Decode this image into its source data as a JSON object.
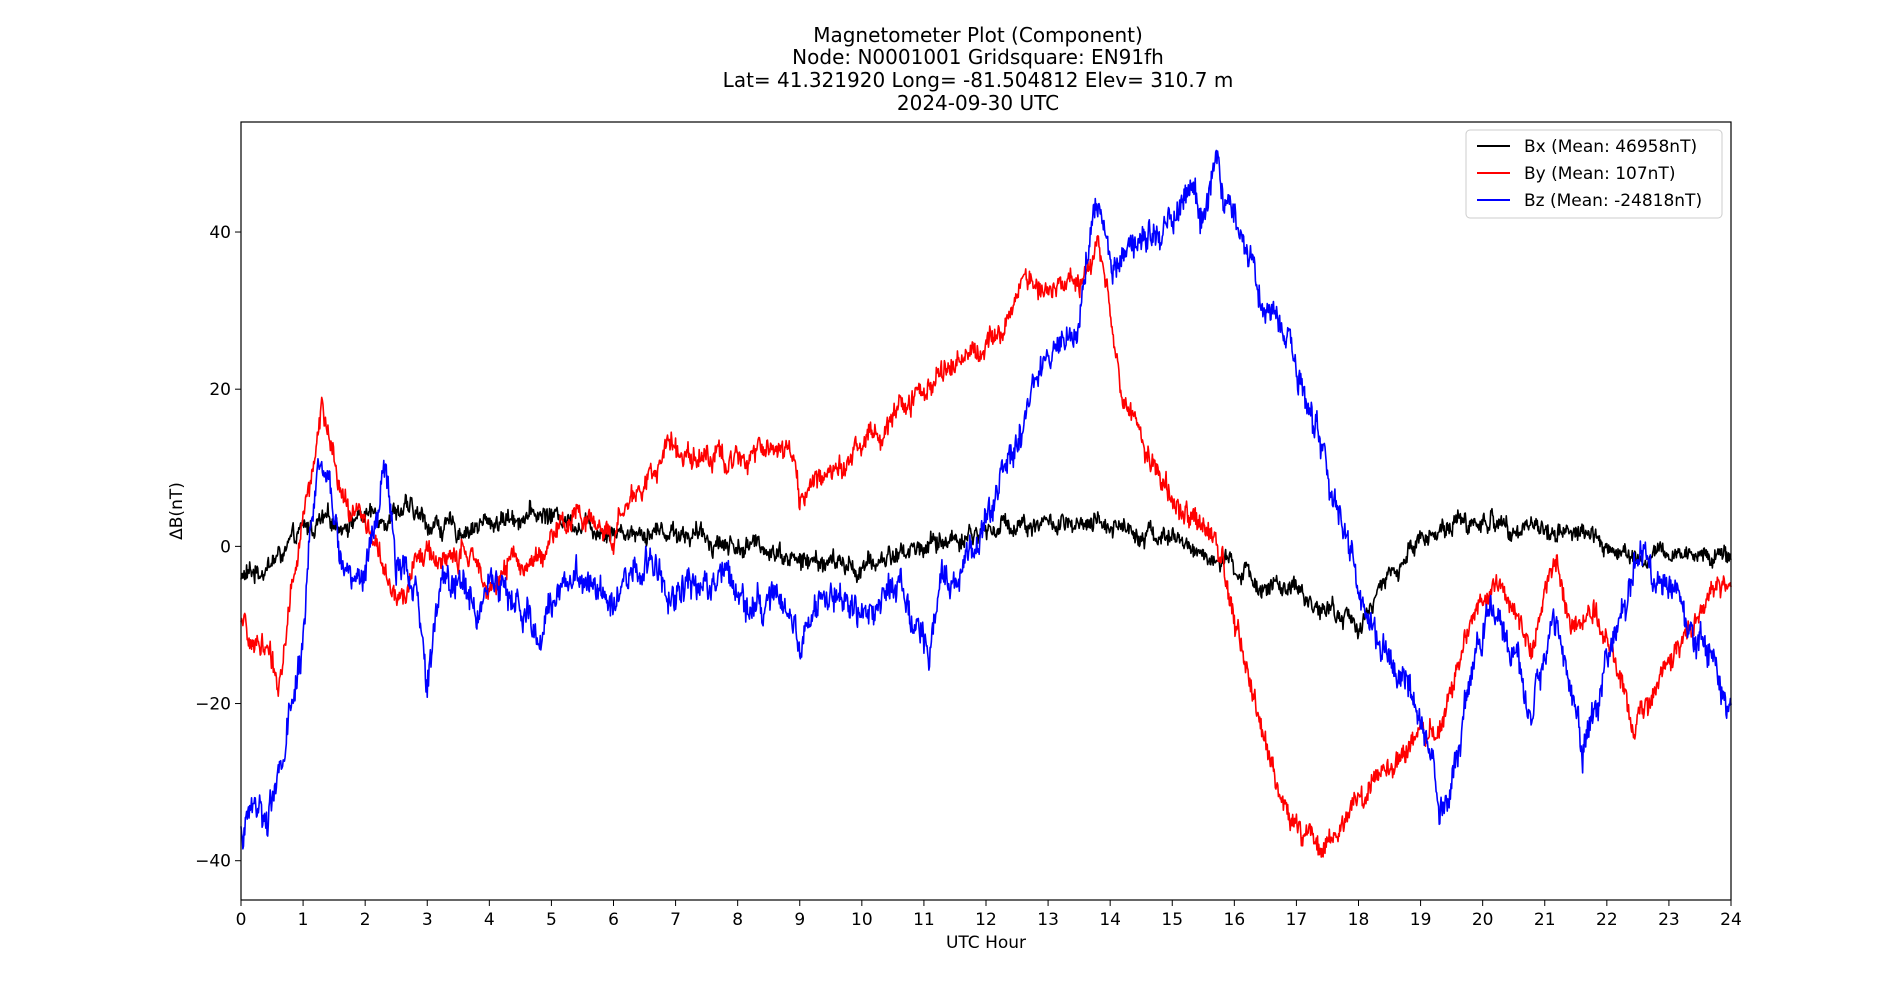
{
  "chart_data": {
    "type": "line",
    "title_lines": [
      "Magnetometer Plot (Component)",
      "Node:  N0001001     Gridsquare:  EN91fh",
      "Lat= 41.321920    Long= -81.504812    Elev= 310.7 m",
      "2024-09-30  UTC"
    ],
    "xlabel": "UTC Hour",
    "ylabel": "ΔB(nT)",
    "xlim": [
      0,
      24
    ],
    "ylim": [
      -45,
      54
    ],
    "x_ticks": [
      0,
      1,
      2,
      3,
      4,
      5,
      6,
      7,
      8,
      9,
      10,
      11,
      12,
      13,
      14,
      15,
      16,
      17,
      18,
      19,
      20,
      21,
      22,
      23,
      24
    ],
    "y_ticks": [
      -40,
      -20,
      0,
      20,
      40
    ],
    "grid": false,
    "legend_position": "top-right",
    "series": [
      {
        "name": "Bx (Mean: 46958nT)",
        "color": "#000000",
        "noise": 1.0,
        "points": [
          [
            0,
            -4
          ],
          [
            0.3,
            -3
          ],
          [
            0.5,
            -2
          ],
          [
            0.8,
            0
          ],
          [
            1.0,
            2
          ],
          [
            1.3,
            3
          ],
          [
            1.6,
            3
          ],
          [
            2.0,
            4
          ],
          [
            2.3,
            4
          ],
          [
            2.6,
            5
          ],
          [
            3.0,
            3
          ],
          [
            3.5,
            2
          ],
          [
            4.0,
            3
          ],
          [
            4.5,
            4
          ],
          [
            5.0,
            4
          ],
          [
            5.5,
            3
          ],
          [
            6.0,
            2
          ],
          [
            6.5,
            2
          ],
          [
            7.0,
            2
          ],
          [
            7.5,
            1
          ],
          [
            8.0,
            0
          ],
          [
            8.5,
            0
          ],
          [
            9.0,
            -2
          ],
          [
            9.5,
            -2
          ],
          [
            10.0,
            -3
          ],
          [
            10.5,
            -1
          ],
          [
            11.0,
            0
          ],
          [
            11.5,
            1
          ],
          [
            12.0,
            2
          ],
          [
            12.5,
            3
          ],
          [
            13.0,
            3
          ],
          [
            13.5,
            2
          ],
          [
            14.0,
            3
          ],
          [
            14.5,
            2
          ],
          [
            15.0,
            1
          ],
          [
            15.5,
            -1
          ],
          [
            16.0,
            -3
          ],
          [
            16.5,
            -5
          ],
          [
            17.0,
            -6
          ],
          [
            17.5,
            -8
          ],
          [
            18.0,
            -10
          ],
          [
            18.5,
            -4
          ],
          [
            19.0,
            1
          ],
          [
            19.5,
            3
          ],
          [
            20.0,
            3
          ],
          [
            20.5,
            3
          ],
          [
            21.0,
            2
          ],
          [
            21.5,
            2
          ],
          [
            22.0,
            0
          ],
          [
            22.5,
            -2
          ],
          [
            23.0,
            -1
          ],
          [
            23.5,
            -1
          ],
          [
            24.0,
            -1
          ]
        ]
      },
      {
        "name": "By (Mean: 107nT)",
        "color": "#ff0000",
        "noise": 1.2,
        "points": [
          [
            0,
            -10
          ],
          [
            0.2,
            -13
          ],
          [
            0.4,
            -12
          ],
          [
            0.6,
            -18
          ],
          [
            0.8,
            -6
          ],
          [
            1.0,
            3
          ],
          [
            1.15,
            10
          ],
          [
            1.3,
            18
          ],
          [
            1.45,
            12
          ],
          [
            1.6,
            6
          ],
          [
            1.8,
            4
          ],
          [
            2.0,
            4
          ],
          [
            2.2,
            0
          ],
          [
            2.4,
            -6
          ],
          [
            2.6,
            -7
          ],
          [
            2.8,
            -2
          ],
          [
            3.0,
            -1
          ],
          [
            3.3,
            -2
          ],
          [
            3.6,
            -1
          ],
          [
            3.9,
            -3
          ],
          [
            4.1,
            -5
          ],
          [
            4.4,
            -2
          ],
          [
            4.7,
            -2
          ],
          [
            5.0,
            1
          ],
          [
            5.3,
            3
          ],
          [
            5.6,
            4
          ],
          [
            5.9,
            2
          ],
          [
            6.0,
            1
          ],
          [
            6.2,
            5
          ],
          [
            6.5,
            8
          ],
          [
            6.8,
            12
          ],
          [
            7.0,
            13
          ],
          [
            7.3,
            12
          ],
          [
            7.6,
            11
          ],
          [
            8.0,
            11
          ],
          [
            8.3,
            13
          ],
          [
            8.7,
            13
          ],
          [
            8.9,
            11
          ],
          [
            9.0,
            6
          ],
          [
            9.3,
            8
          ],
          [
            9.6,
            11
          ],
          [
            10.0,
            13
          ],
          [
            10.3,
            15
          ],
          [
            10.6,
            17
          ],
          [
            11.0,
            20
          ],
          [
            11.3,
            22
          ],
          [
            11.6,
            25
          ],
          [
            12.0,
            25
          ],
          [
            12.2,
            28
          ],
          [
            12.5,
            32
          ],
          [
            12.7,
            34
          ],
          [
            13.0,
            33
          ],
          [
            13.3,
            33
          ],
          [
            13.6,
            34
          ],
          [
            13.8,
            40
          ],
          [
            14.0,
            30
          ],
          [
            14.2,
            18
          ],
          [
            14.5,
            14
          ],
          [
            14.8,
            10
          ],
          [
            15.0,
            5
          ],
          [
            15.2,
            4
          ],
          [
            15.5,
            2
          ],
          [
            15.8,
            -2
          ],
          [
            16.0,
            -8
          ],
          [
            16.3,
            -20
          ],
          [
            16.6,
            -28
          ],
          [
            16.9,
            -34
          ],
          [
            17.2,
            -37
          ],
          [
            17.4,
            -38
          ],
          [
            17.6,
            -37
          ],
          [
            18.0,
            -32
          ],
          [
            18.5,
            -28
          ],
          [
            19.0,
            -25
          ],
          [
            19.3,
            -24
          ],
          [
            19.6,
            -16
          ],
          [
            19.8,
            -10
          ],
          [
            20.0,
            -6
          ],
          [
            20.3,
            -5
          ],
          [
            20.6,
            -9
          ],
          [
            20.8,
            -14
          ],
          [
            21.0,
            -6
          ],
          [
            21.2,
            -3
          ],
          [
            21.4,
            -9
          ],
          [
            21.6,
            -11
          ],
          [
            21.8,
            -9
          ],
          [
            22.0,
            -12
          ],
          [
            22.2,
            -16
          ],
          [
            22.4,
            -23
          ],
          [
            22.6,
            -21
          ],
          [
            22.9,
            -16
          ],
          [
            23.2,
            -12
          ],
          [
            23.5,
            -9
          ],
          [
            23.8,
            -5
          ],
          [
            24.0,
            -4
          ]
        ]
      },
      {
        "name": "Bz (Mean: -24818nT)",
        "color": "#0000ff",
        "noise": 1.6,
        "points": [
          [
            0,
            -37
          ],
          [
            0.2,
            -33
          ],
          [
            0.4,
            -34
          ],
          [
            0.6,
            -30
          ],
          [
            0.8,
            -22
          ],
          [
            1.0,
            -12
          ],
          [
            1.1,
            2
          ],
          [
            1.25,
            8
          ],
          [
            1.4,
            9
          ],
          [
            1.6,
            -2
          ],
          [
            1.8,
            -3
          ],
          [
            2.0,
            -4
          ],
          [
            2.15,
            2
          ],
          [
            2.3,
            10
          ],
          [
            2.5,
            -2
          ],
          [
            2.7,
            -4
          ],
          [
            2.9,
            -10
          ],
          [
            3.0,
            -18
          ],
          [
            3.2,
            -5
          ],
          [
            3.5,
            -4
          ],
          [
            3.8,
            -8
          ],
          [
            4.0,
            -4
          ],
          [
            4.2,
            -5
          ],
          [
            4.5,
            -8
          ],
          [
            4.8,
            -12
          ],
          [
            5.1,
            -5
          ],
          [
            5.4,
            -3
          ],
          [
            5.7,
            -4
          ],
          [
            6.0,
            -6
          ],
          [
            6.3,
            -4
          ],
          [
            6.6,
            -2
          ],
          [
            6.9,
            -6
          ],
          [
            7.2,
            -4
          ],
          [
            7.5,
            -5
          ],
          [
            7.8,
            -3
          ],
          [
            8.1,
            -6
          ],
          [
            8.4,
            -8
          ],
          [
            8.7,
            -6
          ],
          [
            9.0,
            -13
          ],
          [
            9.2,
            -8
          ],
          [
            9.5,
            -5
          ],
          [
            9.8,
            -8
          ],
          [
            10.0,
            -9
          ],
          [
            10.3,
            -7
          ],
          [
            10.6,
            -5
          ],
          [
            10.9,
            -11
          ],
          [
            11.1,
            -12
          ],
          [
            11.3,
            -4
          ],
          [
            11.6,
            -2
          ],
          [
            11.9,
            1
          ],
          [
            12.0,
            4
          ],
          [
            12.3,
            10
          ],
          [
            12.6,
            16
          ],
          [
            12.9,
            22
          ],
          [
            13.2,
            26
          ],
          [
            13.5,
            30
          ],
          [
            13.7,
            40
          ],
          [
            13.85,
            43
          ],
          [
            14.0,
            35
          ],
          [
            14.3,
            38
          ],
          [
            14.6,
            40
          ],
          [
            14.9,
            40
          ],
          [
            15.1,
            43
          ],
          [
            15.3,
            45
          ],
          [
            15.5,
            42
          ],
          [
            15.7,
            47
          ],
          [
            15.9,
            43
          ],
          [
            16.1,
            42
          ],
          [
            16.3,
            36
          ],
          [
            16.5,
            30
          ],
          [
            16.8,
            28
          ],
          [
            17.0,
            22
          ],
          [
            17.3,
            16
          ],
          [
            17.5,
            8
          ],
          [
            17.8,
            2
          ],
          [
            18.0,
            -6
          ],
          [
            18.3,
            -12
          ],
          [
            18.6,
            -16
          ],
          [
            18.9,
            -20
          ],
          [
            19.1,
            -24
          ],
          [
            19.3,
            -35
          ],
          [
            19.5,
            -32
          ],
          [
            19.7,
            -22
          ],
          [
            19.9,
            -14
          ],
          [
            20.1,
            -8
          ],
          [
            20.3,
            -10
          ],
          [
            20.6,
            -16
          ],
          [
            20.8,
            -22
          ],
          [
            21.0,
            -14
          ],
          [
            21.2,
            -9
          ],
          [
            21.4,
            -18
          ],
          [
            21.6,
            -27
          ],
          [
            21.8,
            -22
          ],
          [
            22.0,
            -14
          ],
          [
            22.2,
            -10
          ],
          [
            22.4,
            -4
          ],
          [
            22.6,
            0
          ],
          [
            22.8,
            -6
          ],
          [
            23.0,
            -4
          ],
          [
            23.3,
            -10
          ],
          [
            23.6,
            -14
          ],
          [
            23.8,
            -16
          ],
          [
            24.0,
            -19
          ]
        ]
      }
    ]
  }
}
